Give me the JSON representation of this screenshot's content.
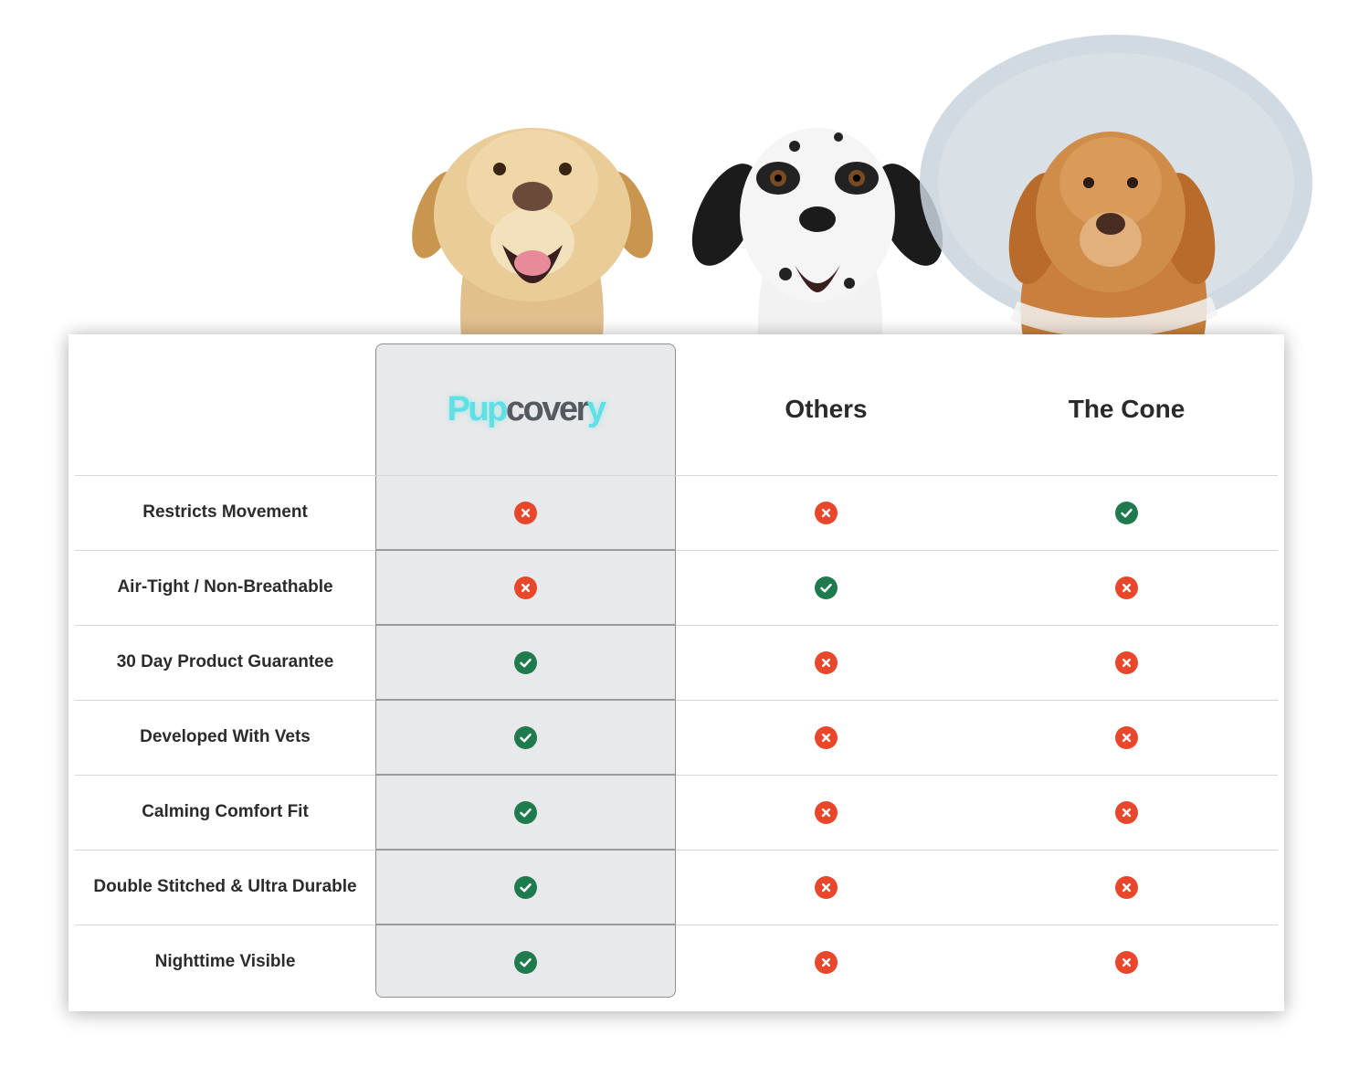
{
  "colors": {
    "check": "#1f7a4d",
    "cross": "#e8472b",
    "brand_teal": "#5fe0e4",
    "brand_dark": "#555a60",
    "highlight_bg": "#e8e9eb"
  },
  "header": {
    "brand": {
      "part1": "Pup",
      "part2": "cover",
      "part3": "y"
    },
    "columns": [
      "Others",
      "The Cone"
    ]
  },
  "rows": [
    {
      "label": "Restricts Movement",
      "values": [
        "cross",
        "cross",
        "check"
      ]
    },
    {
      "label": "Air-Tight / Non-Breathable",
      "values": [
        "cross",
        "check",
        "cross"
      ]
    },
    {
      "label": "30 Day Product Guarantee",
      "values": [
        "check",
        "cross",
        "cross"
      ]
    },
    {
      "label": "Developed With Vets",
      "values": [
        "check",
        "cross",
        "cross"
      ]
    },
    {
      "label": "Calming Comfort Fit",
      "values": [
        "check",
        "cross",
        "cross"
      ]
    },
    {
      "label": "Double Stitched & Ultra Durable",
      "values": [
        "check",
        "cross",
        "cross"
      ]
    },
    {
      "label": "Nighttime Visible",
      "values": [
        "check",
        "cross",
        "cross"
      ]
    }
  ]
}
